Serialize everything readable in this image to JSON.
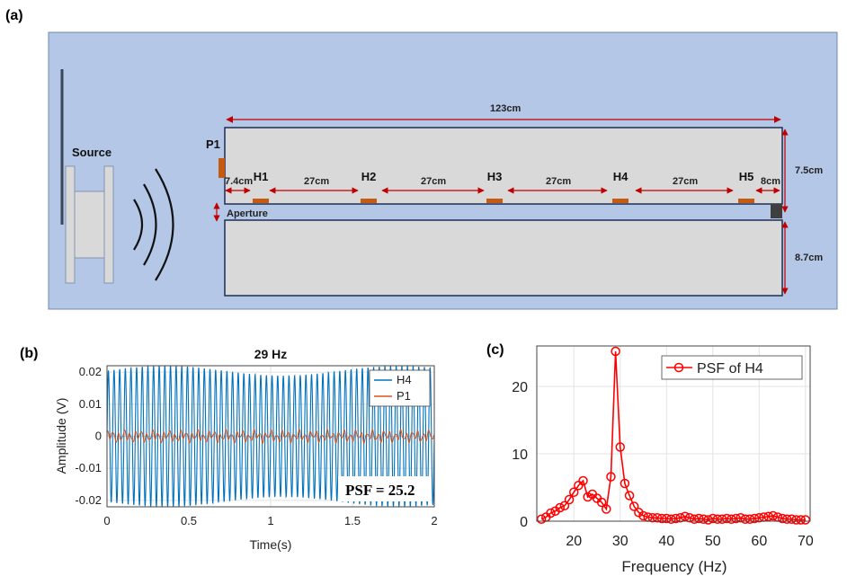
{
  "panels": {
    "a": "(a)",
    "b": "(b)",
    "c": "(c)"
  },
  "diagram": {
    "source_label": "Source",
    "p1_label": "P1",
    "aperture_label": "Aperture",
    "length_label": "123cm",
    "height_upper_label": "7.5cm",
    "height_lower_label": "8.7cm",
    "sensor_labels": [
      "H1",
      "H2",
      "H3",
      "H4",
      "H5"
    ],
    "spacing_labels": [
      "7.4cm",
      "27cm",
      "27cm",
      "27cm",
      "27cm",
      "8cm"
    ],
    "colors": {
      "background": "#b4c7e7",
      "tube": "#d9d9d9",
      "sensor": "#c55a11",
      "arrow": "#c00000"
    }
  },
  "chart_data": [
    {
      "type": "line",
      "title": "29 Hz",
      "xlabel": "Time(s)",
      "ylabel": "Amplitude (V)",
      "xlim": [
        0,
        2
      ],
      "ylim": [
        -0.022,
        0.022
      ],
      "xticks": [
        "0",
        "0.5",
        "1",
        "1.5",
        "2"
      ],
      "yticks": [
        "0.02",
        "0.01",
        "0",
        "-0.01",
        "-0.02"
      ],
      "frequency_hz": 29,
      "legend": "top-right",
      "series": [
        {
          "name": "H4",
          "color": "#0072bd",
          "amplitude": 0.022
        },
        {
          "name": "P1",
          "color": "#d95319",
          "amplitude": 0.0012
        }
      ],
      "annotation": "PSF = 25.2",
      "grid": true
    },
    {
      "type": "line",
      "xlabel": "Frequency (Hz)",
      "ylabel": "",
      "xlim": [
        12,
        71
      ],
      "ylim": [
        0,
        26
      ],
      "xticks": [
        "20",
        "30",
        "40",
        "50",
        "60",
        "70"
      ],
      "yticks": [
        "20",
        "10",
        "0"
      ],
      "legend": "top-right",
      "grid": true,
      "series": [
        {
          "name": "PSF of H4",
          "color": "#ff0000",
          "x": [
            13,
            14,
            15,
            16,
            17,
            18,
            19,
            20,
            21,
            22,
            23,
            24,
            25,
            26,
            27,
            28,
            29,
            30,
            31,
            32,
            33,
            34,
            35,
            36,
            37,
            38,
            39,
            40,
            41,
            42,
            43,
            44,
            45,
            46,
            47,
            48,
            49,
            50,
            51,
            52,
            53,
            54,
            55,
            56,
            57,
            58,
            59,
            60,
            61,
            62,
            63,
            64,
            65,
            66,
            67,
            68,
            69,
            70
          ],
          "y": [
            0.3,
            0.6,
            1.2,
            1.5,
            2.0,
            2.3,
            3.2,
            4.3,
            5.3,
            6.0,
            3.6,
            4.0,
            3.4,
            2.8,
            1.8,
            6.6,
            25.2,
            11.0,
            5.6,
            3.8,
            2.2,
            1.3,
            0.8,
            0.6,
            0.5,
            0.5,
            0.4,
            0.4,
            0.3,
            0.4,
            0.5,
            0.7,
            0.5,
            0.3,
            0.4,
            0.3,
            0.2,
            0.4,
            0.3,
            0.3,
            0.4,
            0.3,
            0.4,
            0.5,
            0.3,
            0.3,
            0.4,
            0.5,
            0.6,
            0.7,
            0.8,
            0.6,
            0.4,
            0.3,
            0.3,
            0.2,
            0.2,
            0.2
          ]
        }
      ]
    }
  ]
}
